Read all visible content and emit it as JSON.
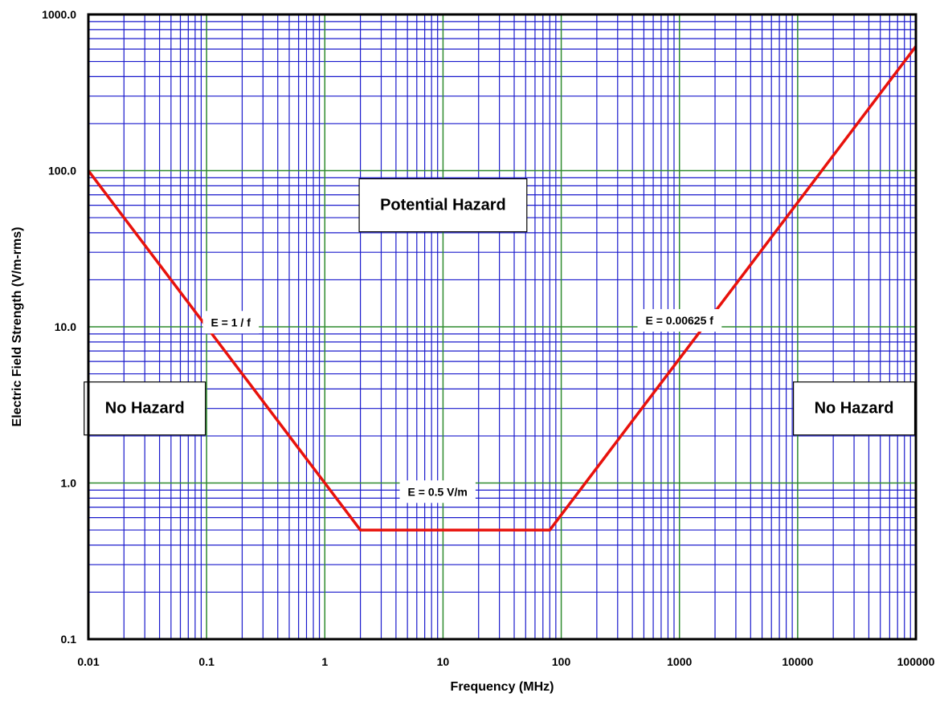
{
  "chart_data": {
    "type": "line",
    "title": "",
    "xlabel": "Frequency (MHz)",
    "ylabel": "Electric Field Strength (V/m-rms)",
    "x_scale": "log",
    "y_scale": "log",
    "xlim": [
      0.01,
      100000
    ],
    "ylim": [
      0.1,
      1000
    ],
    "x_ticks": [
      "0.01",
      "0.1",
      "1",
      "10",
      "100",
      "1000",
      "10000",
      "100000"
    ],
    "y_ticks": [
      "0.1",
      "1.0",
      "10.0",
      "100.0",
      "1000.0"
    ],
    "grid": true,
    "colors": {
      "minor_grid": "#1a1acc",
      "major_grid": "#2e8b2e",
      "series": "#e8120c"
    },
    "series": [
      {
        "points": [
          {
            "x": 0.01,
            "y": 100
          },
          {
            "x": 2,
            "y": 0.5
          },
          {
            "x": 80,
            "y": 0.5
          },
          {
            "x": 100000,
            "y": 625
          }
        ]
      }
    ],
    "annotations": [
      {
        "text": "Potential Hazard",
        "x": 10,
        "y": 60
      },
      {
        "text": "No Hazard",
        "x": 0.03,
        "y": 3
      },
      {
        "text": "No Hazard",
        "x": 30000,
        "y": 3
      },
      {
        "text": "E = 1 / f",
        "x": 0.16,
        "y": 10.7
      },
      {
        "text": "E = 0.00625 f",
        "x": 1000,
        "y": 11
      },
      {
        "text": "E = 0.5 V/m",
        "x": 9,
        "y": 0.88
      }
    ]
  }
}
